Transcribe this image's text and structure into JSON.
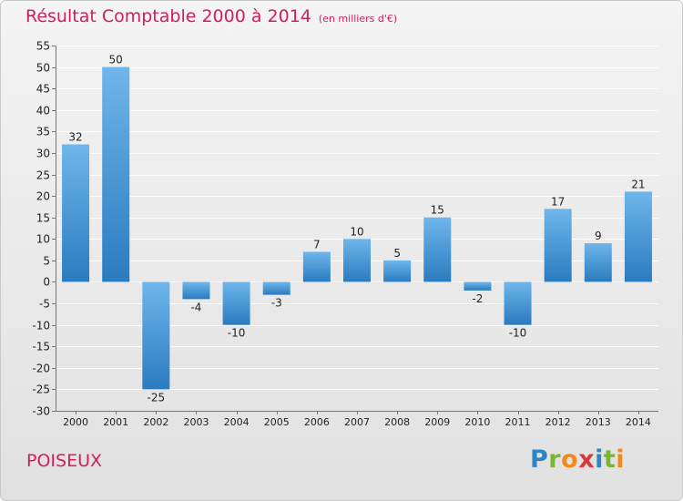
{
  "header": {
    "title": "Résultat Comptable 2000 à 2014",
    "subtitle": "(en milliers d'€)"
  },
  "footer": {
    "commune": "POISEUX",
    "brand_letters": [
      "P",
      "r",
      "o",
      "x",
      "i",
      "t",
      "i"
    ],
    "brand_colors": [
      "#2d84c6",
      "#7bb534",
      "#f08a1c",
      "#d83a3a",
      "#2d84c6",
      "#7bb534",
      "#f08a1c"
    ]
  },
  "colors": {
    "accent": "#d01f5e",
    "bar_light": "#6fb6eb",
    "bar_dark": "#2a7bbf",
    "grid": "#ffffff",
    "text": "#222222"
  },
  "chart_data": {
    "type": "bar",
    "title": "Résultat Comptable 2000 à 2014",
    "subtitle": "(en milliers d'€)",
    "xlabel": "",
    "ylabel": "",
    "categories": [
      "2000",
      "2001",
      "2002",
      "2003",
      "2004",
      "2005",
      "2006",
      "2007",
      "2008",
      "2009",
      "2010",
      "2011",
      "2012",
      "2013",
      "2014"
    ],
    "values": [
      32,
      50,
      -25,
      -4,
      -10,
      -3,
      7,
      10,
      5,
      15,
      -2,
      -10,
      17,
      9,
      21
    ],
    "value_labels": [
      "32",
      "50",
      "-25",
      "-4",
      "-10",
      "-3",
      "7",
      "10",
      "5",
      "15",
      "-2",
      "-10",
      "17",
      "9",
      "21"
    ],
    "ylim": [
      -30,
      55
    ],
    "yticks": [
      55,
      50,
      45,
      40,
      35,
      30,
      25,
      20,
      15,
      10,
      5,
      0,
      -5,
      -10,
      -15,
      -20,
      -25,
      -30
    ],
    "grid": true
  }
}
